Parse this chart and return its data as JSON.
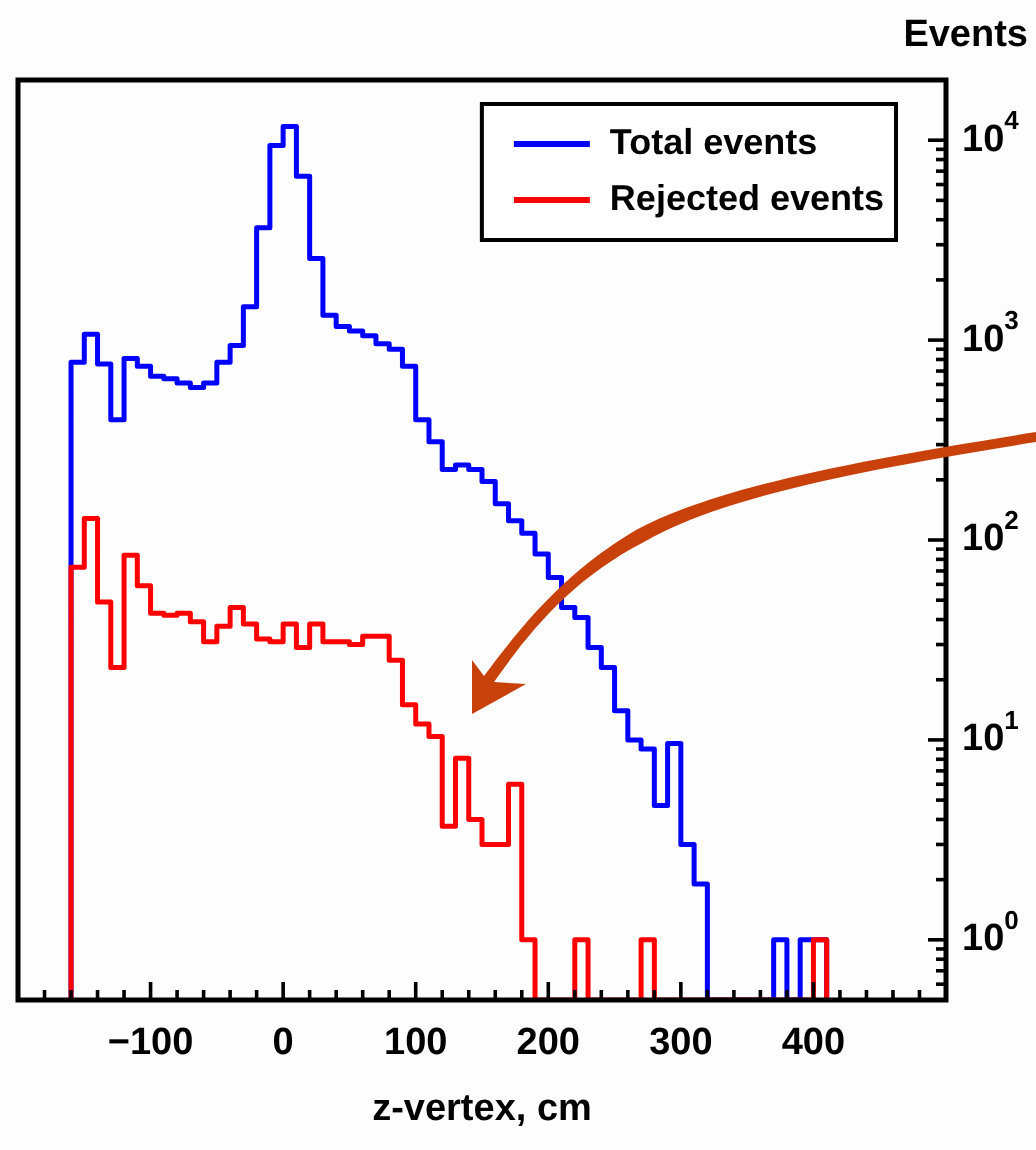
{
  "chart_data": {
    "type": "histogram",
    "xlabel": "z-vertex, cm",
    "ylabel": "Events",
    "bins": [
      -160,
      -150,
      -140,
      -130,
      -120,
      -110,
      -100,
      -90,
      -80,
      -70,
      -60,
      -50,
      -40,
      -30,
      -20,
      -10,
      0,
      10,
      20,
      30,
      40,
      50,
      60,
      70,
      80,
      90,
      100,
      110,
      120,
      130,
      140,
      150,
      160,
      170,
      180,
      190,
      200,
      210,
      220,
      230,
      240,
      250,
      260,
      270,
      280,
      290,
      300,
      310,
      320,
      330,
      340,
      350,
      360,
      370,
      380,
      390,
      400,
      410
    ],
    "series": [
      {
        "name": "Total events",
        "color": "#0000ff",
        "values": [
          775,
          1070,
          760,
          400,
          810,
          740,
          660,
          640,
          610,
          580,
          610,
          775,
          940,
          1470,
          3650,
          9400,
          11700,
          6600,
          2560,
          1330,
          1170,
          1110,
          1050,
          960,
          900,
          740,
          400,
          310,
          225,
          237,
          225,
          196,
          152,
          125,
          108,
          85,
          65,
          46,
          41,
          29,
          23,
          14,
          10,
          9,
          4.7,
          9.6,
          3,
          1.9,
          null,
          null,
          null,
          null,
          null,
          1,
          null,
          1,
          1
        ]
      },
      {
        "name": "Rejected events",
        "color": "#ff0000",
        "values": [
          73,
          128,
          49,
          23,
          84,
          59,
          43,
          42,
          43,
          39,
          31,
          37,
          46,
          38,
          32,
          31,
          38,
          29,
          38,
          31,
          31,
          30,
          33,
          33,
          25,
          15,
          12,
          10.4,
          3.7,
          8.1,
          4,
          3,
          3,
          6,
          1,
          null,
          null,
          null,
          1,
          null,
          null,
          null,
          null,
          1,
          null,
          null,
          null,
          null,
          null,
          null,
          null,
          null,
          null,
          null,
          null,
          null,
          1
        ]
      }
    ],
    "log": "y",
    "grid": false,
    "legend": "top right",
    "line_style": "solid",
    "xlim": [
      -200,
      500
    ],
    "xticks": [
      {
        "value": -180,
        "label": null
      },
      {
        "value": -160,
        "label": null
      },
      {
        "value": -140,
        "label": null
      },
      {
        "value": -120,
        "label": null
      },
      {
        "value": -100,
        "label": "−100"
      },
      {
        "value": -80,
        "label": null
      },
      {
        "value": -60,
        "label": null
      },
      {
        "value": -40,
        "label": null
      },
      {
        "value": -20,
        "label": null
      },
      0,
      {
        "value": 20,
        "label": null
      },
      {
        "value": 40,
        "label": null
      },
      {
        "value": 60,
        "label": null
      },
      {
        "value": 80,
        "label": null
      },
      100,
      {
        "value": 120,
        "label": null
      },
      {
        "value": 140,
        "label": null
      },
      {
        "value": 160,
        "label": null
      },
      {
        "value": 180,
        "label": null
      },
      200,
      {
        "value": 220,
        "label": null
      },
      {
        "value": 240,
        "label": null
      },
      {
        "value": 260,
        "label": null
      },
      {
        "value": 280,
        "label": null
      },
      300,
      {
        "value": 320,
        "label": null
      },
      {
        "value": 340,
        "label": null
      },
      {
        "value": 360,
        "label": null
      },
      {
        "value": 380,
        "label": null
      },
      400,
      {
        "value": 420,
        "label": null
      },
      {
        "value": 440,
        "label": null
      },
      {
        "value": 460,
        "label": null
      },
      {
        "value": 480,
        "label": null
      }
    ],
    "ylim": [
      0.5,
      20000
    ],
    "yticks": [
      {
        "value": 0.5,
        "label": null
      },
      {
        "value": 0.6,
        "label": null
      },
      {
        "value": 0.7,
        "label": null
      },
      {
        "value": 0.8,
        "label": null
      },
      {
        "value": 0.9,
        "label": null
      },
      {
        "value": 1,
        "label": "10$^{0}$"
      },
      {
        "value": 2,
        "label": null
      },
      {
        "value": 3,
        "label": null
      },
      {
        "value": 4,
        "label": null
      },
      {
        "value": 5,
        "label": null
      },
      {
        "value": 6,
        "label": null
      },
      {
        "value": 7,
        "label": null
      },
      {
        "value": 8,
        "label": null
      },
      {
        "value": 9,
        "label": null
      },
      {
        "value": 10,
        "label": "10$^{1}$"
      },
      {
        "value": 20,
        "label": null
      },
      {
        "value": 30,
        "label": null
      },
      {
        "value": 40,
        "label": null
      },
      {
        "value": 50,
        "label": null
      },
      {
        "value": 60,
        "label": null
      },
      {
        "value": 70,
        "label": null
      },
      {
        "value": 80,
        "label": null
      },
      {
        "value": 90,
        "label": null
      },
      {
        "value": 100,
        "label": "10$^{2}$"
      },
      {
        "value": 200,
        "label": null
      },
      {
        "value": 300,
        "label": null
      },
      {
        "value": 400,
        "label": null
      },
      {
        "value": 500,
        "label": null
      },
      {
        "value": 600,
        "label": null
      },
      {
        "value": 700,
        "label": null
      },
      {
        "value": 800,
        "label": null
      },
      {
        "value": 900,
        "label": null
      },
      {
        "value": 1000,
        "label": "10$^{3}$"
      },
      {
        "value": 2000,
        "label": null
      },
      {
        "value": 3000,
        "label": null
      },
      {
        "value": 4000,
        "label": null
      },
      {
        "value": 5000,
        "label": null
      },
      {
        "value": 6000,
        "label": null
      },
      {
        "value": 7000,
        "label": null
      },
      {
        "value": 8000,
        "label": null
      },
      {
        "value": 9000,
        "label": null
      },
      {
        "value": 10000,
        "label": "10$^{4}$"
      },
      {
        "value": 20000,
        "label": null
      }
    ]
  }
}
